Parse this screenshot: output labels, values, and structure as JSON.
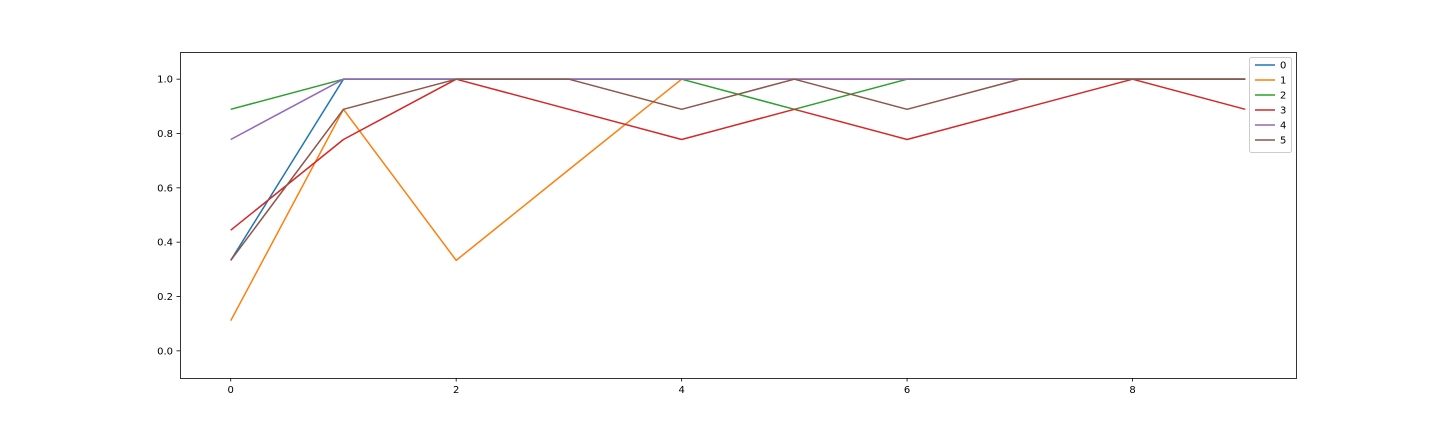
{
  "chart_data": {
    "type": "line",
    "x": [
      0,
      1,
      2,
      3,
      4,
      5,
      6,
      7,
      8,
      9
    ],
    "xlim": [
      -0.45,
      9.45
    ],
    "ylim": [
      -0.1,
      1.1
    ],
    "xticks": [
      0,
      2,
      4,
      6,
      8
    ],
    "xtick_labels": [
      "0",
      "2",
      "4",
      "6",
      "8"
    ],
    "yticks": [
      0.0,
      0.2,
      0.4,
      0.6,
      0.8,
      1.0
    ],
    "ytick_labels": [
      "0.0",
      "0.2",
      "0.4",
      "0.6",
      "0.8",
      "1.0"
    ],
    "grid": false,
    "legend_position": "upper-right",
    "series": [
      {
        "name": "0",
        "color": "#1f77b4",
        "values": [
          0.333,
          1.0,
          1.0,
          1.0,
          1.0,
          1.0,
          1.0,
          1.0,
          1.0,
          1.0
        ]
      },
      {
        "name": "1",
        "color": "#ff7f0e",
        "values": [
          0.111,
          0.889,
          0.333,
          0.667,
          1.0,
          1.0,
          1.0,
          1.0,
          1.0,
          1.0
        ]
      },
      {
        "name": "2",
        "color": "#2ca02c",
        "values": [
          0.889,
          1.0,
          1.0,
          1.0,
          1.0,
          0.889,
          1.0,
          1.0,
          1.0,
          1.0
        ]
      },
      {
        "name": "3",
        "color": "#d62728",
        "values": [
          0.444,
          0.778,
          1.0,
          0.889,
          0.778,
          0.889,
          0.778,
          0.889,
          1.0,
          0.889
        ]
      },
      {
        "name": "4",
        "color": "#9467bd",
        "values": [
          0.778,
          1.0,
          1.0,
          1.0,
          1.0,
          1.0,
          1.0,
          1.0,
          1.0,
          1.0
        ]
      },
      {
        "name": "5",
        "color": "#8c564b",
        "values": [
          0.333,
          0.889,
          1.0,
          1.0,
          0.889,
          1.0,
          0.889,
          1.0,
          1.0,
          1.0
        ]
      }
    ]
  }
}
